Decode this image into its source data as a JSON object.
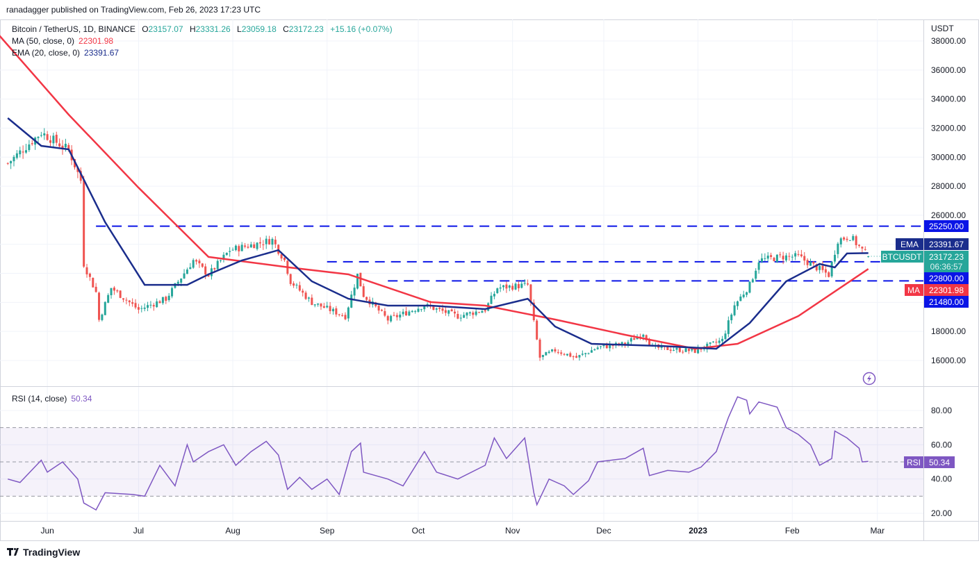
{
  "publish_line": "ranadagger published on TradingView.com, Feb 26, 2023 17:23 UTC",
  "footer": {
    "brand": "TradingView"
  },
  "colors": {
    "up": "#26a69a",
    "down": "#ef5350",
    "ma": "#f23645",
    "ema": "#1a2d8c",
    "level": "#0a14e6",
    "rsi": "#7e57c2"
  },
  "chart_data": [
    {
      "type": "candlestick",
      "title": "Bitcoin / TetherUS, 1D, BINANCE",
      "ohlc": {
        "o_label": "O",
        "o": "23157.07",
        "h_label": "H",
        "h": "23331.26",
        "l_label": "L",
        "l": "23059.18",
        "c_label": "C",
        "c": "23172.23",
        "change": "+15.16 (+0.07%)"
      },
      "currency": "USDT",
      "day_zero": "2022-05-21",
      "ylim": [
        15000,
        39000
      ],
      "price_ticks": [
        16000,
        18000,
        26000,
        28000,
        30000,
        32000,
        34000,
        36000,
        38000
      ],
      "x_ticks": [
        {
          "label": "Jun",
          "day": 11
        },
        {
          "label": "Jul",
          "day": 41
        },
        {
          "label": "Aug",
          "day": 72
        },
        {
          "label": "Sep",
          "day": 103
        },
        {
          "label": "Oct",
          "day": 133
        },
        {
          "label": "Nov",
          "day": 164
        },
        {
          "label": "Dec",
          "day": 194
        },
        {
          "label": "2023",
          "day": 225
        },
        {
          "label": "Feb",
          "day": 256
        },
        {
          "label": "Mar",
          "day": 284
        }
      ],
      "close_path": [
        [
          -2,
          29580
        ],
        [
          9,
          31700
        ],
        [
          18,
          30500
        ],
        [
          22,
          28400
        ],
        [
          23,
          22650
        ],
        [
          27,
          20700
        ],
        [
          28,
          18800
        ],
        [
          32,
          21000
        ],
        [
          41,
          19500
        ],
        [
          50,
          20250
        ],
        [
          59,
          22900
        ],
        [
          64,
          21900
        ],
        [
          71,
          23600
        ],
        [
          85,
          24300
        ],
        [
          89,
          22900
        ],
        [
          91,
          21450
        ],
        [
          98,
          20000
        ],
        [
          109,
          19050
        ],
        [
          113,
          21900
        ],
        [
          115,
          20500
        ],
        [
          123,
          18800
        ],
        [
          135,
          19800
        ],
        [
          146,
          19050
        ],
        [
          155,
          19500
        ],
        [
          159,
          21000
        ],
        [
          169,
          21200
        ],
        [
          171,
          18600
        ],
        [
          173,
          16200
        ],
        [
          178,
          16700
        ],
        [
          185,
          16200
        ],
        [
          192,
          16900
        ],
        [
          201,
          17150
        ],
        [
          207,
          17900
        ],
        [
          210,
          16900
        ],
        [
          224,
          16650
        ],
        [
          233,
          17400
        ],
        [
          237,
          19800
        ],
        [
          242,
          21200
        ],
        [
          245,
          22900
        ],
        [
          253,
          23150
        ],
        [
          258,
          23150
        ],
        [
          264,
          22400
        ],
        [
          268,
          21900
        ],
        [
          271,
          24300
        ],
        [
          275,
          24550
        ],
        [
          279,
          23600
        ],
        [
          281,
          23172.23
        ]
      ],
      "indicators": {
        "ma": {
          "label": "MA (50, close, 0)",
          "value": "22301.98",
          "badge": "MA",
          "path": [
            [
              -5,
              38430
            ],
            [
              18,
              32930
            ],
            [
              41,
              27900
            ],
            [
              64,
              23130
            ],
            [
              91,
              22400
            ],
            [
              110,
              21930
            ],
            [
              137,
              20020
            ],
            [
              155,
              19780
            ],
            [
              178,
              18820
            ],
            [
              201,
              17770
            ],
            [
              224,
              16810
            ],
            [
              238,
              17150
            ],
            [
              258,
              19060
            ],
            [
              281,
              22301.98
            ]
          ]
        },
        "ema": {
          "label": "EMA (20, close, 0)",
          "value": "23391.67",
          "badge": "EMA",
          "path": [
            [
              -2,
              32690
            ],
            [
              9,
              30780
            ],
            [
              18,
              30540
            ],
            [
              30,
              25520
            ],
            [
              43,
              21210
            ],
            [
              57,
              21210
            ],
            [
              64,
              21930
            ],
            [
              75,
              22890
            ],
            [
              87,
              23600
            ],
            [
              98,
              21450
            ],
            [
              110,
              20250
            ],
            [
              123,
              19780
            ],
            [
              137,
              19780
            ],
            [
              155,
              19540
            ],
            [
              169,
              20250
            ],
            [
              178,
              18340
            ],
            [
              190,
              17150
            ],
            [
              213,
              17000
            ],
            [
              231,
              16810
            ],
            [
              242,
              18580
            ],
            [
              254,
              21450
            ],
            [
              265,
              22650
            ],
            [
              270,
              22410
            ],
            [
              274,
              23370
            ],
            [
              281,
              23391.67
            ]
          ]
        }
      },
      "levels": [
        {
          "price": 25250,
          "label": "25250.00",
          "from_day": 27
        },
        {
          "price": 22800,
          "label": "22800.00",
          "from_day": 103
        },
        {
          "price": 21480,
          "label": "21480.00",
          "from_day": 123
        }
      ],
      "last_price": {
        "symbol": "BTCUSDT",
        "value": "23172.23",
        "countdown": "06:36:57"
      }
    },
    {
      "type": "line",
      "title": "RSI (14, close)",
      "value": "50.34",
      "badge": "RSI",
      "ylim": [
        15,
        95
      ],
      "ticks": [
        20,
        40,
        60,
        80
      ],
      "bands": [
        30,
        50,
        70
      ],
      "series": [
        [
          -2,
          40
        ],
        [
          2,
          38
        ],
        [
          9,
          51
        ],
        [
          11,
          44
        ],
        [
          16,
          50
        ],
        [
          21,
          40
        ],
        [
          23,
          26
        ],
        [
          27,
          22
        ],
        [
          30,
          32
        ],
        [
          39,
          31
        ],
        [
          43,
          30
        ],
        [
          48,
          48
        ],
        [
          53,
          36
        ],
        [
          57,
          60
        ],
        [
          59,
          50
        ],
        [
          64,
          56
        ],
        [
          69,
          60
        ],
        [
          73,
          48
        ],
        [
          78,
          56
        ],
        [
          83,
          62
        ],
        [
          87,
          54
        ],
        [
          90,
          34
        ],
        [
          94,
          41
        ],
        [
          98,
          34
        ],
        [
          103,
          40
        ],
        [
          107,
          31
        ],
        [
          111,
          56
        ],
        [
          114,
          61
        ],
        [
          115,
          44
        ],
        [
          123,
          40
        ],
        [
          128,
          36
        ],
        [
          135,
          56
        ],
        [
          139,
          44
        ],
        [
          146,
          40
        ],
        [
          155,
          48
        ],
        [
          158,
          64
        ],
        [
          162,
          52
        ],
        [
          168,
          64
        ],
        [
          171,
          32
        ],
        [
          172,
          25
        ],
        [
          176,
          40
        ],
        [
          181,
          36
        ],
        [
          184,
          31
        ],
        [
          189,
          39
        ],
        [
          192,
          50
        ],
        [
          201,
          52
        ],
        [
          207,
          58
        ],
        [
          209,
          42
        ],
        [
          215,
          45
        ],
        [
          222,
          44
        ],
        [
          226,
          47
        ],
        [
          231,
          56
        ],
        [
          235,
          76
        ],
        [
          238,
          88
        ],
        [
          241,
          86
        ],
        [
          242,
          78
        ],
        [
          245,
          85
        ],
        [
          251,
          82
        ],
        [
          254,
          70
        ],
        [
          258,
          66
        ],
        [
          262,
          60
        ],
        [
          265,
          48
        ],
        [
          269,
          52
        ],
        [
          270,
          68
        ],
        [
          274,
          64
        ],
        [
          278,
          58
        ],
        [
          279,
          50
        ],
        [
          281,
          50.34
        ]
      ]
    }
  ]
}
